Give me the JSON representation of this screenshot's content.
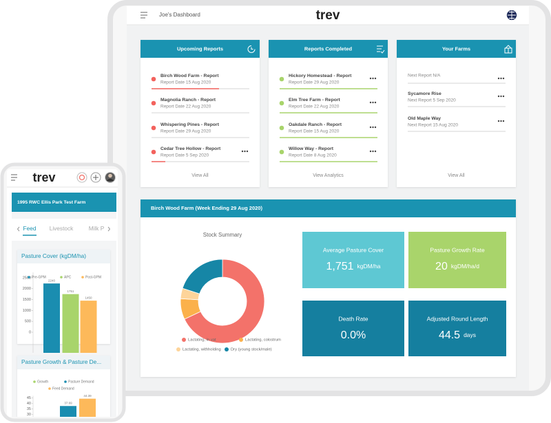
{
  "tablet": {
    "header": {
      "title": "Joe's Dashboard",
      "logo": "trev"
    },
    "cards": [
      {
        "title": "Upcoming Reports",
        "items": [
          {
            "name": "Birch Wood Farm - Report",
            "date": "Report Date 15 Aug 2020"
          },
          {
            "name": "Magnolia Ranch - Report",
            "date": "Report Date 22 Aug 2020"
          },
          {
            "name": "Whispering Pines - Report",
            "date": "Report Date 29 Aug 2020"
          },
          {
            "name": "Cedar Tree Hollow - Report",
            "date": "Report Date 5 Sep 2020"
          }
        ],
        "link": "View All"
      },
      {
        "title": "Reports Completed",
        "items": [
          {
            "name": "Hickory Homestead - Report",
            "date": "Report Date 29 Aug 2020"
          },
          {
            "name": "Elm Tree Farm - Report",
            "date": "Report Date 22 Aug 2020"
          },
          {
            "name": "Oakdale Ranch - Report",
            "date": "Report Date 15 Aug 2020"
          },
          {
            "name": "Willow Way - Report",
            "date": "Report Date 8 Aug 2020"
          }
        ],
        "link": "View Analytics"
      },
      {
        "title": "Your Farms",
        "items": [
          {
            "date": "Next Report N/A"
          },
          {
            "name": "Sycamore Rise",
            "date": "Next Report 5 Sep 2020"
          },
          {
            "name": "Old Maple Way",
            "date": "Next Report 15 Aug 2020"
          }
        ],
        "link": "View All"
      }
    ],
    "report": {
      "title": "Birch Wood Farm (Week Ending 29 Aug 2020)",
      "stats": [
        {
          "label": "Average Pasture Cover",
          "value": "1,751",
          "unit": "kgDM/ha"
        },
        {
          "label": "Pasture Growth Rate",
          "value": "20",
          "unit": "kgDM/ha/d"
        },
        {
          "label": "Death Rate",
          "value": "0.0%"
        },
        {
          "label": "Adjusted Round Length",
          "value": "44.5",
          "unit": "days"
        }
      ]
    }
  },
  "phone": {
    "logo": "trev",
    "farm": "1995 RWC Ellis Park Test Farm",
    "tabs": [
      "Feed",
      "Livestock",
      "Milk P"
    ]
  },
  "chart_data": [
    {
      "type": "pie",
      "title": "Stock Summary",
      "categories": [
        "Lactating, in vat",
        "Lactating, colostrum",
        "Lactating, withholding",
        "Dry (young stock/male)"
      ],
      "values": [
        68,
        8,
        4,
        20
      ],
      "colors": [
        "#f3726a",
        "#fbb14b",
        "#fdd49a",
        "#1686a6"
      ]
    },
    {
      "type": "bar",
      "title": "Pasture Cover (kgDM/ha)",
      "series": [
        {
          "name": "Pre-GPM",
          "color": "#1a8db0",
          "values": [
            2240
          ]
        },
        {
          "name": "APC",
          "color": "#a8d46b",
          "values": [
            1751
          ]
        },
        {
          "name": "Post-GPM",
          "color": "#fdb95a",
          "values": [
            1450
          ]
        }
      ],
      "ylim": [
        0,
        2750
      ],
      "yticks": [
        0,
        500,
        1000,
        1500,
        2000,
        2500
      ]
    },
    {
      "type": "bar",
      "title": "Pasture Growth & Pasture De...",
      "series": [
        {
          "name": "Growth",
          "color": "#a8d46b",
          "values": [
            null
          ]
        },
        {
          "name": "Pasture Demand",
          "color": "#1a8db0",
          "values": [
            37.69
          ]
        },
        {
          "name": "Feed Demand",
          "color": "#fdb95a",
          "values": [
            44.39
          ]
        }
      ],
      "ylim": [
        30,
        47
      ],
      "yticks": [
        30,
        35,
        40,
        45
      ]
    }
  ]
}
